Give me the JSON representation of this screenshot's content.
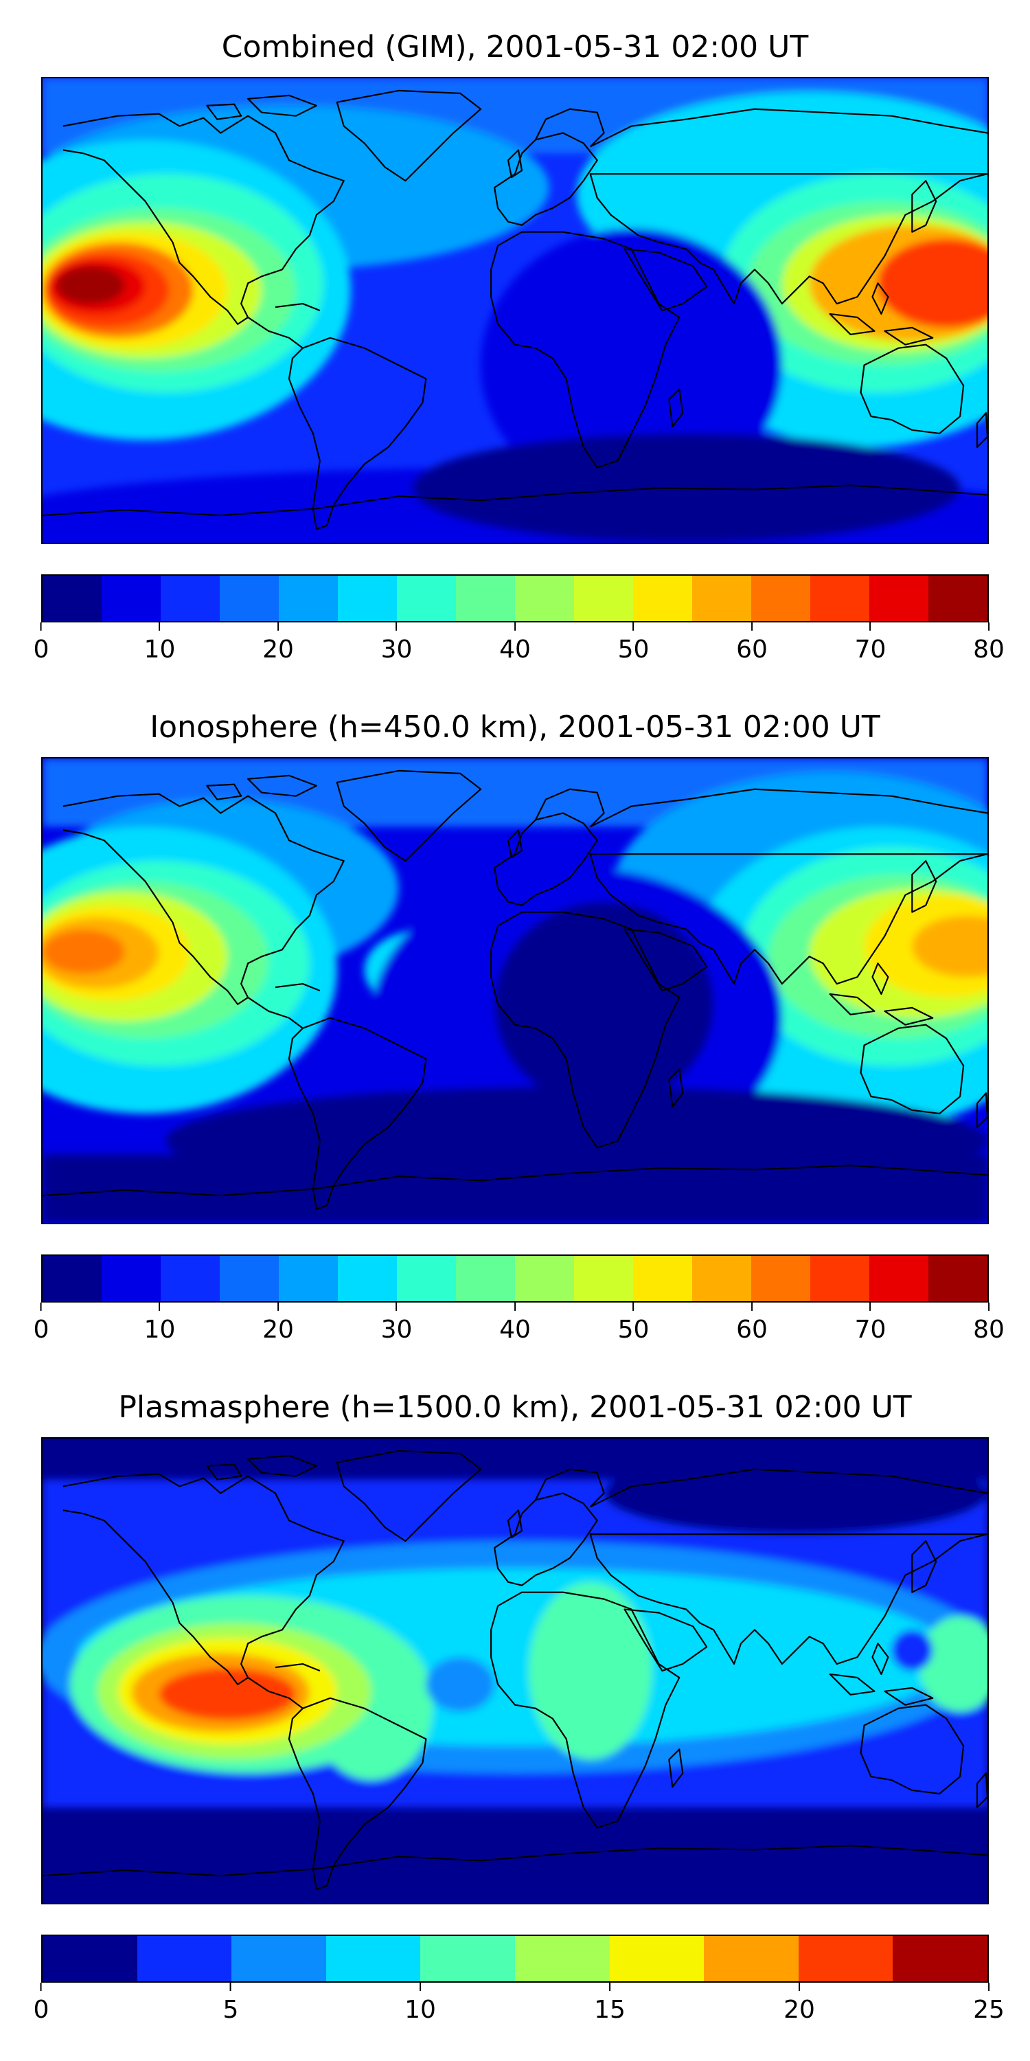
{
  "panels": [
    {
      "title": "Combined (GIM), 2001-05-31 02:00 UT",
      "colorbar": {
        "min": 0,
        "max": 80,
        "colors": [
          "#00008f",
          "#0000e6",
          "#0a2cff",
          "#0a6cff",
          "#00a2ff",
          "#00dcff",
          "#2effcf",
          "#62ff96",
          "#9cff5c",
          "#cfff2a",
          "#ffe800",
          "#ffae00",
          "#ff7400",
          "#ff3800",
          "#e80000",
          "#9e0000"
        ],
        "ticks": [
          0,
          10,
          20,
          30,
          40,
          50,
          60,
          70,
          80
        ]
      },
      "chart_data": {
        "type": "heatmap",
        "title": "Combined (GIM), 2001-05-31 02:00 UT",
        "colorbar_range": [
          0,
          80
        ],
        "colorbar_levels": 16,
        "notable_regions": [
          {
            "region": "central Pacific (west of Mexico)",
            "value_range": [
              70,
              80
            ]
          },
          {
            "region": "western Pacific / Philippines",
            "value_range": [
              60,
              70
            ]
          },
          {
            "region": "Southern Ocean / Antarctica",
            "value_range": [
              0,
              10
            ]
          }
        ]
      }
    },
    {
      "title": "Ionosphere  (h=450.0 km), 2001-05-31 02:00 UT",
      "colorbar": {
        "min": 0,
        "max": 80,
        "colors": [
          "#00008f",
          "#0000e6",
          "#0a2cff",
          "#0a6cff",
          "#00a2ff",
          "#00dcff",
          "#2effcf",
          "#62ff96",
          "#9cff5c",
          "#cfff2a",
          "#ffe800",
          "#ffae00",
          "#ff7400",
          "#ff3800",
          "#e80000",
          "#9e0000"
        ],
        "ticks": [
          0,
          10,
          20,
          30,
          40,
          50,
          60,
          70,
          80
        ]
      },
      "chart_data": {
        "type": "heatmap",
        "title": "Ionosphere  (h=450.0 km), 2001-05-31 02:00 UT",
        "colorbar_range": [
          0,
          80
        ],
        "colorbar_levels": 16,
        "notable_regions": [
          {
            "region": "central Pacific (west of Mexico)",
            "value_range": [
              60,
              65
            ]
          },
          {
            "region": "western Pacific / Philippines",
            "value_range": [
              50,
              60
            ]
          },
          {
            "region": "Africa / South Atlantic",
            "value_range": [
              0,
              10
            ]
          }
        ]
      }
    },
    {
      "title": "Plasmasphere (h=1500.0 km), 2001-05-31 02:00 UT",
      "colorbar": {
        "min": 0,
        "max": 25,
        "colors": [
          "#00008f",
          "#0a2cff",
          "#0a8cff",
          "#00dcff",
          "#4dffb0",
          "#a6ff55",
          "#f8f500",
          "#ffa000",
          "#ff3c00",
          "#a80000"
        ],
        "ticks": [
          0,
          5,
          10,
          15,
          20,
          25
        ]
      },
      "chart_data": {
        "type": "heatmap",
        "title": "Plasmasphere (h=1500.0 km), 2001-05-31 02:00 UT",
        "colorbar_range": [
          0,
          25
        ],
        "colorbar_levels": 10,
        "notable_regions": [
          {
            "region": "eastern Pacific (west of South America)",
            "value_range": [
              20,
              22.5
            ]
          },
          {
            "region": "South America / Africa",
            "value_range": [
              10,
              15
            ]
          },
          {
            "region": "polar regions",
            "value_range": [
              0,
              2.5
            ]
          }
        ]
      }
    }
  ]
}
